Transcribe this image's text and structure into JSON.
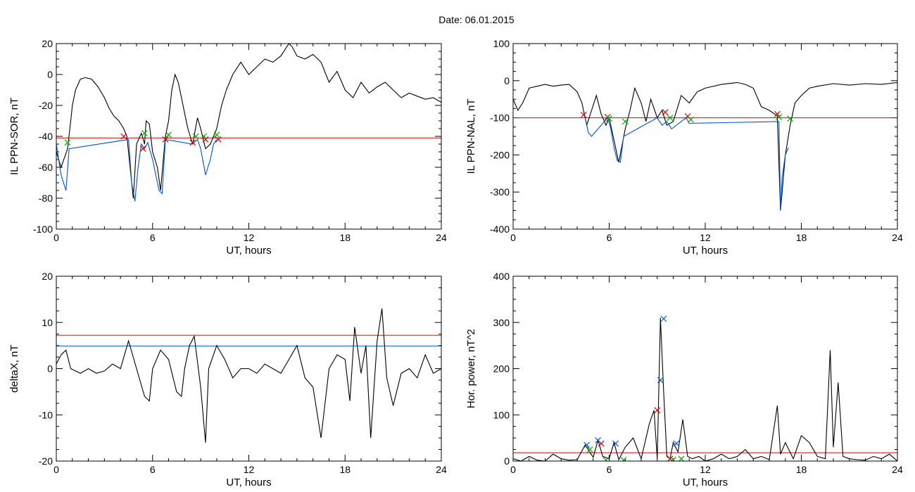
{
  "figure": {
    "title": "Date:  06.01.2015"
  },
  "chart_data": [
    {
      "type": "line",
      "xlabel": "UT, hours",
      "ylabel": "IL PPN-SOR, nT",
      "xlim": [
        0,
        24
      ],
      "ylim": [
        -100,
        20
      ],
      "xticks": [
        0,
        6,
        12,
        18,
        24
      ],
      "yticks": [
        -100,
        -80,
        -60,
        -40,
        -20,
        0,
        20
      ],
      "grid": false,
      "series": [
        {
          "color": "#000000",
          "x": [
            0,
            0.3,
            0.7,
            0.9,
            1.0,
            1.2,
            1.5,
            1.8,
            2.2,
            2.6,
            3.0,
            3.3,
            3.6,
            3.9,
            4.2,
            4.4,
            4.6,
            4.8,
            5.0,
            5.3,
            5.5,
            5.6,
            5.8,
            6.0,
            6.3,
            6.5,
            6.8,
            7.0,
            7.2,
            7.4,
            7.6,
            7.8,
            8.0,
            8.2,
            8.5,
            8.8,
            9.0,
            9.3,
            9.6,
            9.8,
            10.0,
            10.3,
            10.6,
            11.0,
            11.5,
            12.0,
            12.5,
            13.0,
            13.5,
            14.0,
            14.5,
            14.7,
            15.0,
            15.5,
            16.0,
            16.5,
            17.0,
            17.5,
            18.0,
            18.5,
            19.0,
            19.5,
            20.0,
            20.5,
            21.0,
            21.5,
            22.0,
            22.5,
            23.0,
            23.5,
            24.0
          ],
          "y": [
            -50,
            -60,
            -48,
            -30,
            -20,
            -10,
            -3,
            -2,
            -3,
            -8,
            -15,
            -22,
            -27,
            -30,
            -35,
            -40,
            -60,
            -80,
            -45,
            -38,
            -45,
            -30,
            -32,
            -50,
            -60,
            -75,
            -40,
            -30,
            -10,
            0,
            -5,
            -15,
            -25,
            -35,
            -45,
            -28,
            -35,
            -48,
            -45,
            -40,
            -35,
            -20,
            -10,
            0,
            8,
            0,
            5,
            10,
            8,
            12,
            20,
            18,
            12,
            10,
            13,
            8,
            -5,
            2,
            -10,
            -15,
            -5,
            -12,
            -8,
            -5,
            -10,
            -15,
            -12,
            -14,
            -16,
            -15,
            -18
          ]
        },
        {
          "color": "#0055cc",
          "x": [
            0,
            0.3,
            0.6,
            0.8,
            4.5,
            4.7,
            4.9,
            5.1,
            5.3,
            5.5,
            5.7,
            6.0,
            6.2,
            6.4,
            6.6,
            6.8,
            8.5,
            8.8,
            9.0,
            9.3,
            9.6,
            9.8,
            10.0
          ],
          "y": [
            -45,
            -65,
            -75,
            -48,
            -42,
            -70,
            -82,
            -60,
            -45,
            -48,
            -44,
            -55,
            -65,
            -75,
            -77,
            -42,
            -45,
            -42,
            -48,
            -65,
            -55,
            -45,
            -42
          ]
        }
      ],
      "markers": [
        {
          "color": "#dd0000",
          "x": [
            4.2,
            5.4,
            6.8,
            8.5,
            9.3,
            10.1
          ],
          "y": [
            -40,
            -48,
            -42,
            -44,
            -42,
            -42
          ]
        },
        {
          "color": "#00aa00",
          "x": [
            0.7,
            5.5,
            7.0,
            8.7,
            9.2,
            10.0
          ],
          "y": [
            -44,
            -38,
            -39,
            -40,
            -40,
            -39
          ]
        }
      ],
      "hlines": [
        {
          "color": "#dd0000",
          "y": -41
        }
      ]
    },
    {
      "type": "line",
      "xlabel": "UT, hours",
      "ylabel": "IL PPN-NAL, nT",
      "xlim": [
        0,
        24
      ],
      "ylim": [
        -400,
        100
      ],
      "xticks": [
        0,
        6,
        12,
        18,
        24
      ],
      "yticks": [
        -400,
        -300,
        -200,
        -100,
        0,
        100
      ],
      "grid": false,
      "series": [
        {
          "color": "#000000",
          "x": [
            0,
            0.3,
            0.6,
            1.0,
            1.5,
            2.0,
            2.5,
            3.0,
            3.5,
            4.0,
            4.3,
            4.6,
            4.9,
            5.2,
            5.5,
            5.8,
            6.0,
            6.3,
            6.6,
            7.0,
            7.3,
            7.6,
            8.0,
            8.3,
            8.6,
            9.0,
            9.3,
            9.6,
            10.0,
            10.5,
            11.0,
            11.5,
            12.0,
            13.0,
            14.0,
            14.5,
            15.0,
            15.5,
            16.0,
            16.5,
            16.7,
            17.0,
            17.3,
            17.6,
            18.0,
            18.5,
            19.0,
            20.0,
            21.0,
            22.0,
            23.0,
            24.0
          ],
          "y": [
            -50,
            -80,
            -60,
            -20,
            -15,
            -10,
            -15,
            -12,
            -10,
            -30,
            -60,
            -120,
            -80,
            -40,
            -90,
            -120,
            -100,
            -160,
            -220,
            -130,
            -80,
            -20,
            -60,
            -110,
            -50,
            -100,
            -80,
            -120,
            -110,
            -40,
            -60,
            -30,
            -20,
            -10,
            -5,
            -10,
            -20,
            -70,
            -80,
            -95,
            -350,
            -200,
            -120,
            -60,
            -40,
            -20,
            -15,
            -8,
            -12,
            -8,
            -10,
            -5
          ]
        },
        {
          "color": "#0055cc",
          "x": [
            4.5,
            4.7,
            4.9,
            5.9,
            6.1,
            6.3,
            6.5,
            6.7,
            6.9,
            9.0,
            9.3,
            9.6,
            9.9,
            10.8,
            11.0,
            16.6,
            16.7,
            16.8,
            17.0,
            17.2
          ],
          "y": [
            -100,
            -140,
            -150,
            -100,
            -130,
            -180,
            -215,
            -220,
            -150,
            -100,
            -120,
            -110,
            -130,
            -100,
            -115,
            -110,
            -350,
            -260,
            -200,
            -180
          ]
        }
      ],
      "markers": [
        {
          "color": "#dd0000",
          "x": [
            4.4,
            5.9,
            9.5,
            10.9,
            16.5
          ],
          "y": [
            -92,
            -98,
            -85,
            -96,
            -90
          ]
        },
        {
          "color": "#00aa00",
          "x": [
            6.0,
            7.0,
            9.8,
            11.1,
            16.6,
            17.3
          ],
          "y": [
            -102,
            -110,
            -100,
            -105,
            -98,
            -102
          ]
        }
      ],
      "hlines": [
        {
          "color": "#dd0000",
          "y": -100
        }
      ]
    },
    {
      "type": "line",
      "xlabel": "UT, hours",
      "ylabel": "deltaX, nT",
      "xlim": [
        0,
        24
      ],
      "ylim": [
        -20,
        20
      ],
      "xticks": [
        0,
        6,
        12,
        18,
        24
      ],
      "yticks": [
        -20,
        -10,
        0,
        10,
        20
      ],
      "grid": false,
      "series": [
        {
          "color": "#000000",
          "x": [
            0,
            0.3,
            0.6,
            0.9,
            1.5,
            2.0,
            2.5,
            3.0,
            3.5,
            4.0,
            4.5,
            5.0,
            5.5,
            5.8,
            6.0,
            6.5,
            7.0,
            7.5,
            7.8,
            8.0,
            8.3,
            8.6,
            9.0,
            9.3,
            9.5,
            10.0,
            10.5,
            11.0,
            11.5,
            12.0,
            12.5,
            13.0,
            13.5,
            14.0,
            14.5,
            15.0,
            15.5,
            16.0,
            16.5,
            17.0,
            17.5,
            18.0,
            18.3,
            18.6,
            19.0,
            19.3,
            19.6,
            20.0,
            20.3,
            20.6,
            21.0,
            21.5,
            22.0,
            22.5,
            23.0,
            23.5,
            24.0
          ],
          "y": [
            1,
            3,
            4,
            0,
            -1,
            0,
            -1,
            -0.5,
            1,
            0,
            6,
            0,
            -6,
            -7,
            0,
            4,
            2,
            -5,
            -6,
            0,
            5,
            7,
            -4,
            -16,
            0,
            5,
            2,
            -2,
            0,
            0,
            -1,
            1,
            0,
            -1,
            2,
            5,
            -2,
            -4,
            -15,
            0,
            3,
            2,
            -7,
            9,
            -1,
            5,
            -15,
            6,
            13,
            -2,
            -8,
            -1,
            0,
            -2,
            3,
            -1,
            0
          ]
        }
      ],
      "hlines": [
        {
          "color": "#dd0000",
          "y": 7.2
        },
        {
          "color": "#0055cc",
          "y": 4.9
        }
      ]
    },
    {
      "type": "line",
      "xlabel": "UT, hours",
      "ylabel": "Hor. power, nT^2",
      "xlim": [
        0,
        24
      ],
      "ylim": [
        0,
        400
      ],
      "xticks": [
        0,
        6,
        12,
        18,
        24
      ],
      "yticks": [
        0,
        100,
        200,
        300,
        400
      ],
      "grid": false,
      "series": [
        {
          "color": "#000000",
          "x": [
            0,
            0.5,
            1.0,
            1.5,
            2.0,
            2.5,
            3.0,
            3.5,
            4.0,
            4.5,
            5.0,
            5.3,
            5.6,
            6.0,
            6.3,
            6.6,
            7.0,
            7.5,
            8.0,
            8.5,
            8.8,
            9.0,
            9.2,
            9.4,
            9.6,
            9.8,
            10.0,
            10.3,
            10.6,
            10.9,
            11.2,
            11.6,
            12.0,
            12.5,
            13.0,
            13.5,
            14.0,
            14.5,
            15.0,
            15.5,
            16.0,
            16.5,
            16.7,
            17.0,
            17.5,
            18.0,
            18.5,
            19.0,
            19.5,
            19.8,
            20.0,
            20.3,
            20.6,
            21.0,
            21.5,
            22.0,
            22.5,
            23.0,
            23.5,
            24.0
          ],
          "y": [
            5,
            0,
            10,
            2,
            0,
            15,
            5,
            2,
            3,
            35,
            8,
            45,
            10,
            5,
            40,
            3,
            30,
            50,
            5,
            80,
            110,
            5,
            310,
            150,
            10,
            5,
            40,
            20,
            90,
            10,
            5,
            10,
            0,
            5,
            15,
            5,
            10,
            25,
            5,
            10,
            3,
            120,
            15,
            40,
            5,
            55,
            40,
            10,
            5,
            240,
            30,
            170,
            10,
            5,
            3,
            2,
            10,
            5,
            15,
            0
          ]
        }
      ],
      "markers": [
        {
          "color": "#dd0000",
          "x": [
            5.5,
            9.0,
            9.8
          ],
          "y": [
            38,
            110,
            5
          ]
        },
        {
          "color": "#0055cc",
          "x": [
            4.6,
            5.3,
            6.4,
            9.2,
            9.4,
            10.2
          ],
          "y": [
            35,
            45,
            38,
            175,
            308,
            38
          ]
        },
        {
          "color": "#00aa00",
          "x": [
            4.8,
            5.8,
            6.9,
            10.0,
            10.5
          ],
          "y": [
            25,
            2,
            2,
            3,
            5
          ]
        }
      ],
      "hlines": [
        {
          "color": "#dd0000",
          "y": 18
        }
      ]
    }
  ]
}
